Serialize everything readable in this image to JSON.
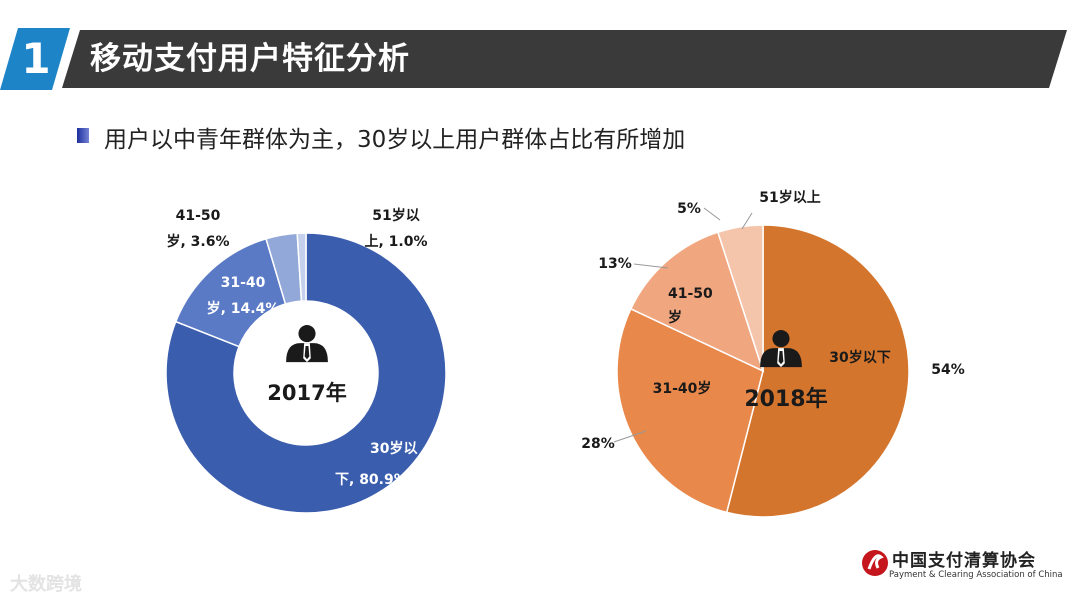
{
  "header": {
    "number": "1",
    "title": "移动支付用户特征分析"
  },
  "subtitle": "用户以中青年群体为主，30岁以上用户群体占比有所增加",
  "chart_data": [
    {
      "type": "pie",
      "variant": "donut",
      "title": "2017年",
      "slices": [
        {
          "name": "30岁以下",
          "value": 80.9,
          "color": "#3a5dae",
          "label_lines": [
            "30岁以",
            "下, 80.9%"
          ]
        },
        {
          "name": "31-40岁",
          "value": 14.4,
          "color": "#5a7ac6",
          "label_lines": [
            "31-40",
            "岁, 14.4%"
          ]
        },
        {
          "name": "41-50岁",
          "value": 3.6,
          "color": "#91a8d9",
          "label_lines": [
            "41-50",
            "岁, 3.6%"
          ]
        },
        {
          "name": "51岁以上",
          "value": 1.0,
          "color": "#c5d1ec",
          "label_lines": [
            "51岁以",
            "上, 1.0%"
          ]
        }
      ]
    },
    {
      "type": "pie",
      "title": "2018年",
      "slices": [
        {
          "name": "30岁以下",
          "value": 54,
          "color": "#d4752e",
          "label": "30岁以下",
          "pct": "54%"
        },
        {
          "name": "31-40岁",
          "value": 28,
          "color": "#e8884a",
          "label": "31-40岁",
          "pct": "28%"
        },
        {
          "name": "41-50岁",
          "value": 13,
          "color": "#f0a67e",
          "label_lines": [
            "41-50",
            "岁"
          ],
          "pct": "13%"
        },
        {
          "name": "51岁以上",
          "value": 5,
          "color": "#f5c5ab",
          "label": "51岁以上",
          "pct": "5%"
        }
      ]
    }
  ],
  "footer": {
    "org_name": "中国支付清算协会",
    "org_english": "Payment & Clearing Association of China"
  },
  "watermark": "大数跨境"
}
